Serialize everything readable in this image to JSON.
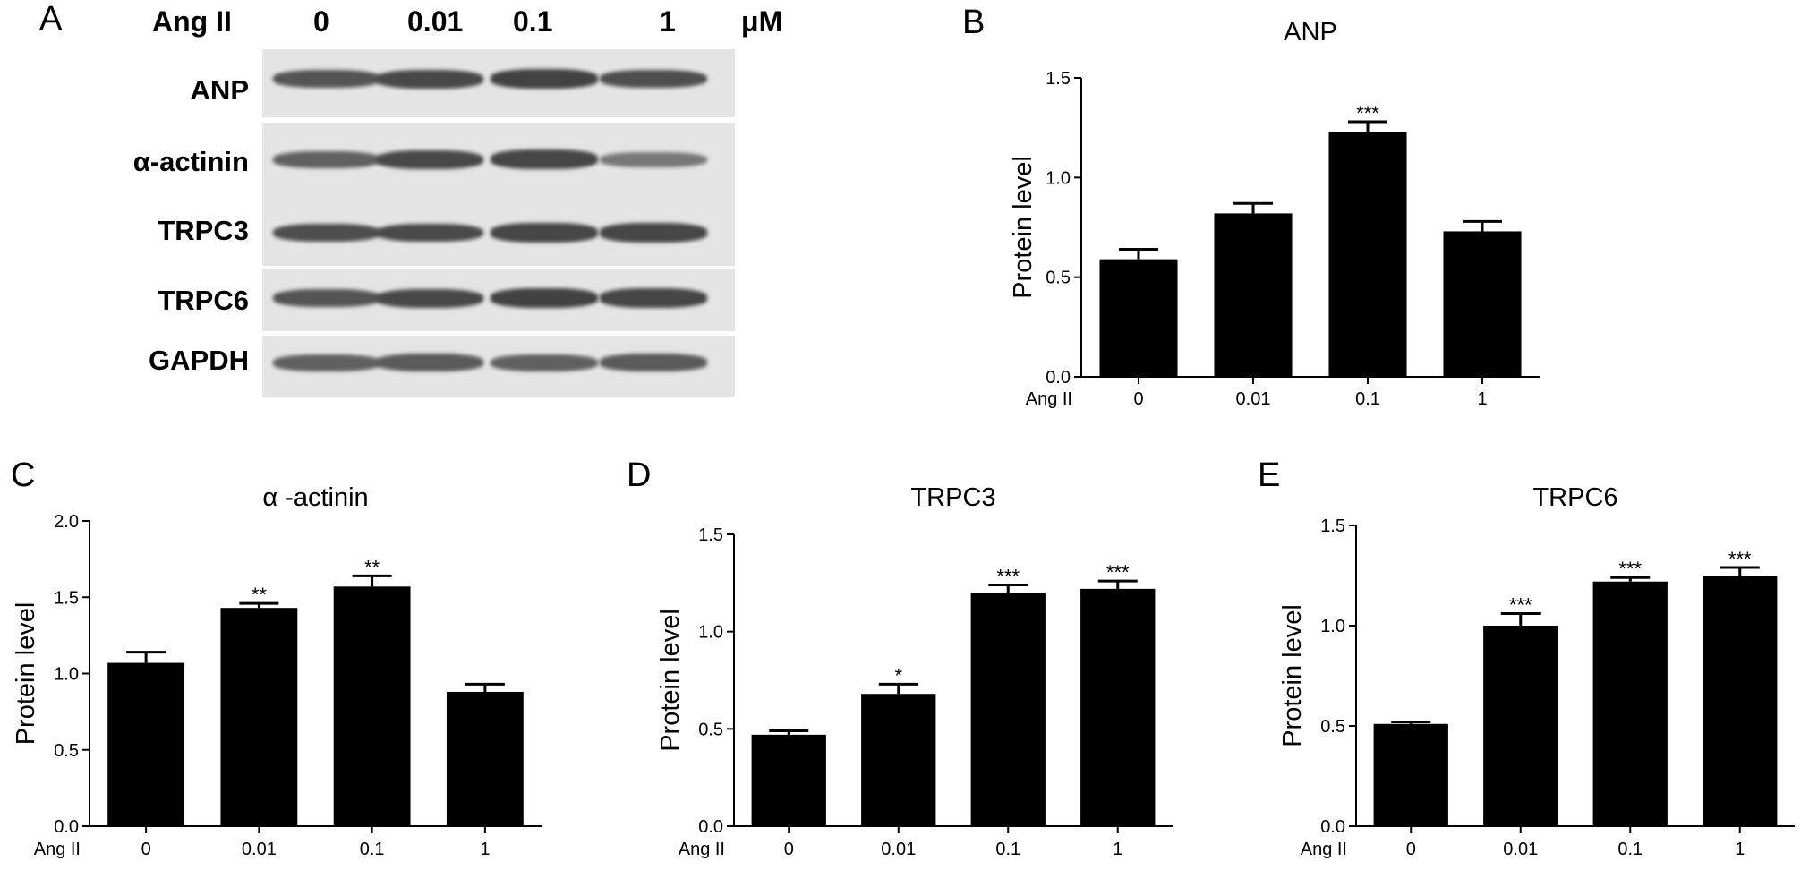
{
  "panel_A": {
    "letter": "A",
    "header_label": "Ang II",
    "concentrations": [
      "0",
      "0.01",
      "0.1",
      "1"
    ],
    "unit": "μM",
    "rows": [
      "ANP",
      "α-actinin",
      "TRPC3",
      "TRPC6",
      "GAPDH"
    ],
    "band_intensity": [
      [
        0.8,
        0.9,
        0.95,
        0.85
      ],
      [
        0.7,
        0.9,
        0.92,
        0.5
      ],
      [
        0.85,
        0.88,
        0.92,
        0.92
      ],
      [
        0.8,
        0.9,
        0.95,
        0.92
      ],
      [
        0.7,
        0.75,
        0.7,
        0.75
      ]
    ]
  },
  "chart_data": [
    {
      "panel": "B",
      "type": "bar",
      "title": "ANP",
      "ylabel": "Protein level",
      "x_group_label": "Ang II",
      "categories": [
        "0",
        "0.01",
        "0.1",
        "1"
      ],
      "values": [
        0.59,
        0.82,
        1.23,
        0.73
      ],
      "errors": [
        0.05,
        0.05,
        0.05,
        0.05
      ],
      "significance": [
        "",
        "",
        "***",
        ""
      ],
      "ylim": [
        0,
        1.5
      ],
      "yticks": [
        "0.0",
        "0.5",
        "1.0",
        "1.5"
      ],
      "grid": false
    },
    {
      "panel": "C",
      "type": "bar",
      "title": "α -actinin",
      "ylabel": "Protein level",
      "x_group_label": "Ang II",
      "categories": [
        "0",
        "0.01",
        "0.1",
        "1"
      ],
      "values": [
        1.07,
        1.43,
        1.57,
        0.88
      ],
      "errors": [
        0.07,
        0.03,
        0.07,
        0.05
      ],
      "significance": [
        "",
        "**",
        "**",
        ""
      ],
      "ylim": [
        0,
        2.0
      ],
      "yticks": [
        "0.0",
        "0.5",
        "1.0",
        "1.5",
        "2.0"
      ],
      "grid": false
    },
    {
      "panel": "D",
      "type": "bar",
      "title": "TRPC3",
      "ylabel": "Protein level",
      "x_group_label": "Ang II",
      "categories": [
        "0",
        "0.01",
        "0.1",
        "1"
      ],
      "values": [
        0.47,
        0.68,
        1.2,
        1.22
      ],
      "errors": [
        0.02,
        0.05,
        0.04,
        0.04
      ],
      "significance": [
        "",
        "*",
        "***",
        "***"
      ],
      "ylim": [
        0,
        1.5
      ],
      "yticks": [
        "0.0",
        "0.5",
        "1.0",
        "1.5"
      ],
      "grid": false
    },
    {
      "panel": "E",
      "type": "bar",
      "title": "TRPC6",
      "ylabel": "Protein level",
      "x_group_label": "Ang II",
      "categories": [
        "0",
        "0.01",
        "0.1",
        "1"
      ],
      "values": [
        0.51,
        1.0,
        1.22,
        1.25
      ],
      "errors": [
        0.01,
        0.06,
        0.02,
        0.04
      ],
      "significance": [
        "",
        "***",
        "***",
        "***"
      ],
      "ylim": [
        0,
        1.5
      ],
      "yticks": [
        "0.0",
        "0.5",
        "1.0",
        "1.5"
      ],
      "grid": false
    }
  ]
}
